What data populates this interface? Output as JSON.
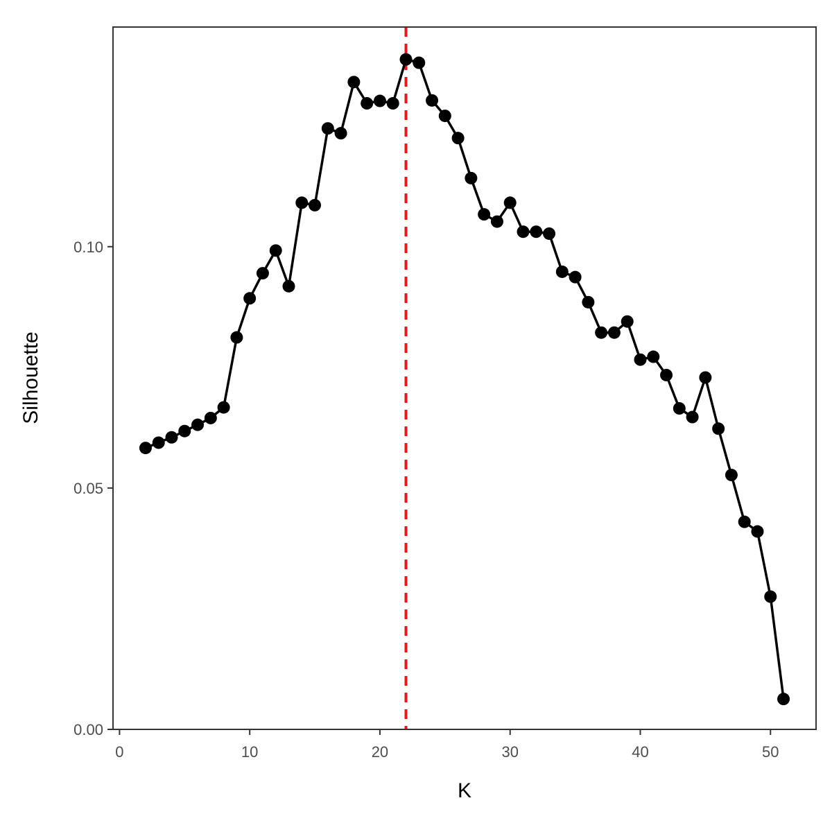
{
  "chart_data": {
    "type": "line",
    "title": "",
    "xlabel": "K",
    "ylabel": "Silhouette",
    "xlim": [
      -0.5,
      53.5
    ],
    "ylim": [
      0.0,
      0.1455
    ],
    "x_ticks": [
      0,
      10,
      20,
      30,
      40,
      50
    ],
    "x_tick_labels": [
      "0",
      "10",
      "20",
      "30",
      "40",
      "50"
    ],
    "y_ticks": [
      0.0,
      0.05,
      0.1
    ],
    "y_tick_labels": [
      "0.00",
      "0.05",
      "0.10"
    ],
    "grid": false,
    "reference_line": {
      "axis": "x",
      "value": 22,
      "style": "dashed",
      "color": "#e8191a"
    },
    "colors": {
      "line": "#000000",
      "points": "#000000",
      "reference": "#e8191a",
      "frame": "#333333"
    },
    "series": [
      {
        "x": [
          2,
          3,
          4,
          5,
          6,
          7,
          8,
          9,
          10,
          11,
          12,
          13,
          14,
          15,
          16,
          17,
          18,
          19,
          20,
          21,
          22,
          23,
          24,
          25,
          26,
          27,
          28,
          29,
          30,
          31,
          32,
          33,
          34,
          35,
          36,
          37,
          38,
          39,
          40,
          41,
          42,
          43,
          44,
          45,
          46,
          47,
          48,
          49,
          50,
          51
        ],
        "values": [
          0.0583,
          0.0594,
          0.0605,
          0.0618,
          0.0631,
          0.0645,
          0.0667,
          0.0812,
          0.0893,
          0.0945,
          0.0992,
          0.0918,
          0.1091,
          0.1086,
          0.1245,
          0.1235,
          0.1341,
          0.1297,
          0.1302,
          0.1297,
          0.1388,
          0.1381,
          0.1303,
          0.1271,
          0.1225,
          0.1142,
          0.1067,
          0.1052,
          0.1091,
          0.1031,
          0.1031,
          0.1027,
          0.0948,
          0.0937,
          0.0885,
          0.0822,
          0.0822,
          0.0845,
          0.0766,
          0.0772,
          0.0734,
          0.0665,
          0.0647,
          0.0729,
          0.0623,
          0.0527,
          0.043,
          0.041,
          0.0275,
          0.0063
        ]
      }
    ]
  }
}
